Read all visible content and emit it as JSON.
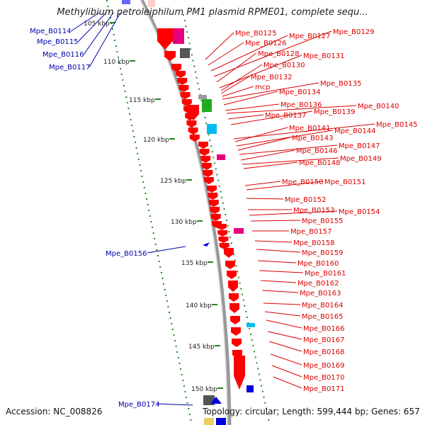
{
  "title": "Methylibium petroleiphilum PM1 plasmid RPME01, complete sequ...",
  "footer": {
    "accession": "Accession: NC_008826",
    "topology": "Topology: circular; Length: 599,444 bp; Genes: 657"
  },
  "colors": {
    "forward_gene": "#ff0000",
    "label_red": "#dd0000",
    "label_blue": "#0000aa",
    "backbone": "#888888",
    "tick": "#228b22"
  },
  "scale_ticks": [
    "105 kbp",
    "110 kbp",
    "115 kbp",
    "120 kbp",
    "125 kbp",
    "130 kbp",
    "135 kbp",
    "140 kbp",
    "145 kbp",
    "150 kbp"
  ],
  "blue_labels": [
    "Mpe_B0114",
    "Mpe_B0115",
    "Mpe_B0116",
    "Mpe_B0117",
    "Mpe_B0156",
    "Mpe_B0174"
  ],
  "red_labels": [
    "Mpe_B0125",
    "Mpe_B0126",
    "Mpe_B0127",
    "Mpe_B0129",
    "Mpe_B0128",
    "Mpe_B0131",
    "Mpe_B0130",
    "Mpe_B0132",
    "mcp",
    "Mpe_B0135",
    "Mpe_B0134",
    "Mpe_B0136",
    "Mpe_B0140",
    "Mpe_B0137",
    "Mpe_B0139",
    "Mpe_B0145",
    "Mpe_B0141",
    "Mpe_B0144",
    "Mpe_B0143",
    "Mpe_B0147",
    "Mpe_B0146",
    "Mpe_B0149",
    "Mpe_B0148",
    "Mpe_B0150",
    "Mpe_B0151",
    "Mpe_B0152",
    "Mpe_B0153",
    "Mpe_B0154",
    "Mpe_B0155",
    "Mpe_B0157",
    "Mpe_B0158",
    "Mpe_B0159",
    "Mpe_B0160",
    "Mpe_B0161",
    "Mpe_B0162",
    "Mpe_B0163",
    "Mpe_B0164",
    "Mpe_B0165",
    "Mpe_B0166",
    "Mpe_B0167",
    "Mpe_B0168",
    "Mpe_B0169",
    "Mpe_B0170",
    "Mpe_B0171"
  ]
}
